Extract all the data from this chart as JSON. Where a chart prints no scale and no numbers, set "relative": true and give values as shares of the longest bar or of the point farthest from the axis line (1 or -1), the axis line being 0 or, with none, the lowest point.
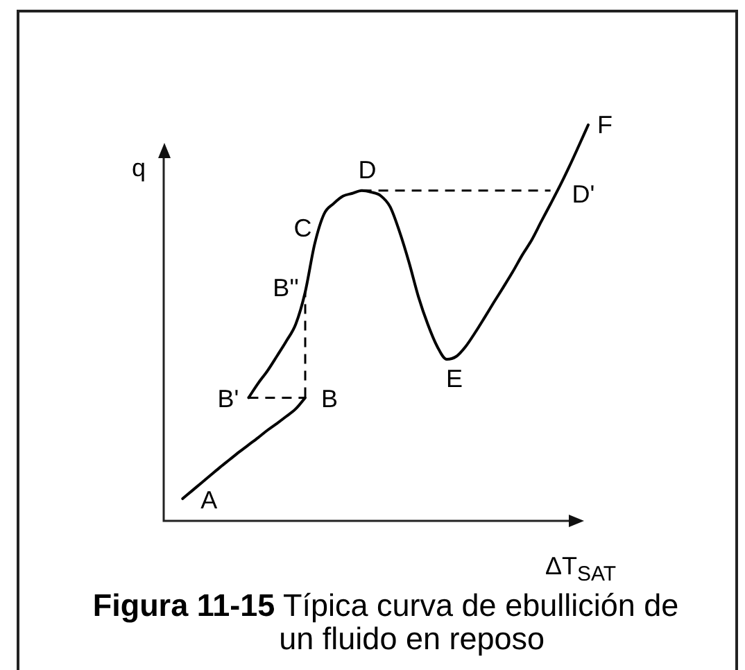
{
  "chart_data": {
    "type": "line",
    "title": "Figura 11-15",
    "subtitle": "Típica curva de ebullición de un fluido en reposo",
    "xlabel": "ΔT$_{SAT}$",
    "ylabel": "q",
    "relative": true,
    "tick_labels": false,
    "marker": "none",
    "line_style": "solid",
    "categories": [
      null,
      null,
      null,
      null,
      null,
      null,
      null,
      null,
      null,
      null,
      null,
      null,
      null,
      null,
      null,
      null,
      null,
      null,
      null,
      null,
      null,
      null,
      null,
      null,
      null,
      null,
      null,
      null,
      null,
      null,
      null,
      null,
      null,
      null,
      null,
      null,
      null,
      null,
      null,
      null,
      null,
      null,
      null,
      null,
      null,
      null
    ],
    "series": [
      {
        "color": "#000000",
        "values": [
          null,
          null,
          0.056,
          0.076,
          0.096,
          0.116,
          0.136,
          0.155,
          0.174,
          0.192,
          0.21,
          0.229,
          0.246,
          0.264,
          0.283,
          0.311,
          null,
          null,
          null,
          null,
          null,
          null,
          null,
          null,
          null,
          null,
          null,
          null,
          null,
          null,
          null,
          null,
          null,
          null,
          null,
          null,
          null,
          null,
          null,
          null,
          null,
          null,
          null,
          null,
          null,
          null
        ]
      },
      {
        "color": "#000000",
        "values": [
          null,
          null,
          null,
          null,
          null,
          null,
          null,
          null,
          null,
          0.311,
          0.347,
          0.379,
          0.416,
          0.454,
          0.497,
          0.578,
          0.699,
          0.775,
          0.801,
          0.82,
          0.827,
          0.834,
          0.83,
          0.821,
          0.793,
          0.73,
          0.653,
          0.566,
          0.496,
          0.44,
          0.408,
          0.415,
          0.44,
          0.475,
          0.513,
          0.552,
          0.59,
          0.629,
          0.671,
          0.709,
          0.755,
          0.8,
          0.846,
          0.895,
          0.947,
          1
        ]
      },
      {
        "color": "#000000",
        "line_style": "dashed",
        "values": [
          null,
          null,
          null,
          null,
          null,
          null,
          null,
          null,
          null,
          0.311,
          0.311,
          0.311,
          0.311,
          0.311,
          0.311,
          0.311,
          null,
          null,
          null,
          null,
          null,
          null,
          null,
          null,
          null,
          null,
          null,
          null,
          null,
          null,
          null,
          null,
          null,
          null,
          null,
          null,
          null,
          null,
          null,
          null,
          null,
          null,
          null,
          null,
          null,
          null
        ]
      },
      {
        "color": "#000000",
        "line_style": "dashed",
        "values": [
          null,
          null,
          null,
          null,
          null,
          null,
          null,
          null,
          null,
          null,
          null,
          null,
          null,
          null,
          null,
          null,
          null,
          null,
          null,
          null,
          null,
          0.834,
          0.834,
          0.834,
          0.834,
          0.834,
          0.834,
          0.834,
          0.834,
          0.834,
          0.834,
          0.834,
          0.834,
          0.834,
          0.834,
          0.834,
          0.834,
          0.834,
          0.834,
          0.834,
          0.834,
          0.834,
          null,
          null,
          null,
          null
        ]
      }
    ],
    "annotations": [
      "A",
      "B",
      "B'",
      "B''",
      "C",
      "D",
      "E",
      "F",
      "D'"
    ]
  }
}
